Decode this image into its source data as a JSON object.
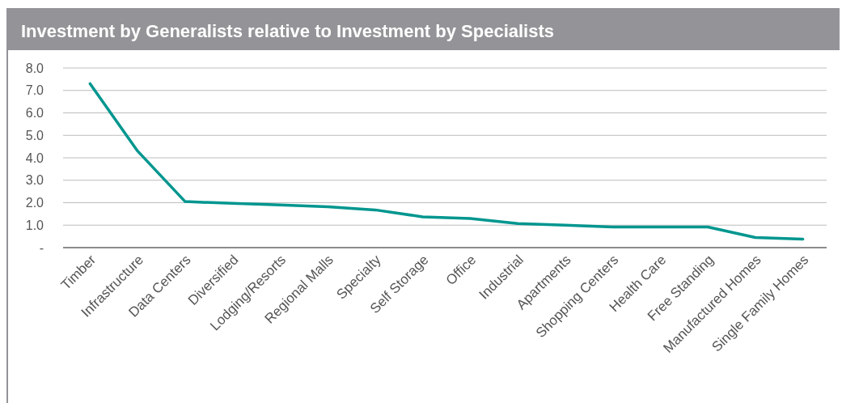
{
  "chart_data": {
    "type": "line",
    "title": "Investment by Generalists relative to Investment by Specialists",
    "categories": [
      "Timber",
      "Infrastructure",
      "Data Centers",
      "Diversified",
      "Lodging/Resorts",
      "Regional Malls",
      "Specialty",
      "Self Storage",
      "Office",
      "Industrial",
      "Apartments",
      "Shopping Centers",
      "Health Care",
      "Free Standing",
      "Manufactured Homes",
      "Single Family Homes"
    ],
    "series": [
      {
        "color": "#00968f",
        "values": [
          7.3,
          4.3,
          2.05,
          1.97,
          1.9,
          1.82,
          1.68,
          1.37,
          1.3,
          1.07,
          1.0,
          0.92,
          0.92,
          0.92,
          0.45,
          0.38
        ]
      }
    ],
    "ylim": [
      0,
      8
    ],
    "yticks": [
      {
        "value": 0,
        "label": "-"
      },
      {
        "value": 1,
        "label": "1.0"
      },
      {
        "value": 2,
        "label": "2.0"
      },
      {
        "value": 3,
        "label": "3.0"
      },
      {
        "value": 4,
        "label": "4.0"
      },
      {
        "value": 5,
        "label": "5.0"
      },
      {
        "value": 6,
        "label": "6.0"
      },
      {
        "value": 7,
        "label": "7.0"
      },
      {
        "value": 8,
        "label": "8.0"
      }
    ],
    "grid": "y",
    "marker": "none",
    "line_style": "solid"
  }
}
